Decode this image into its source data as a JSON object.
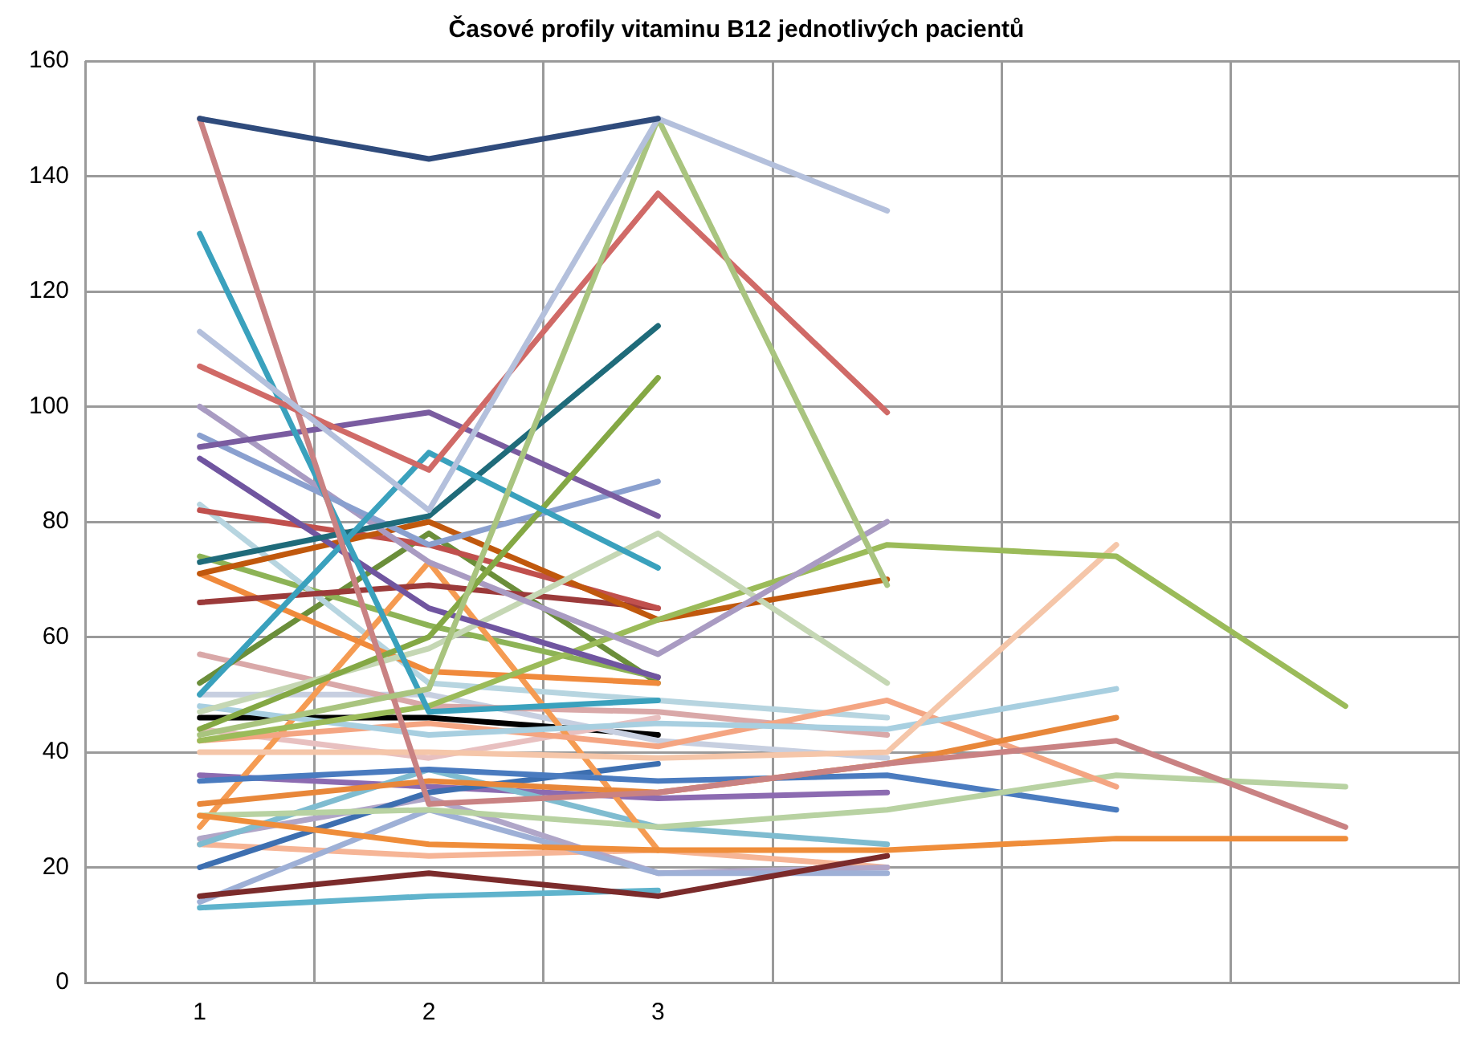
{
  "chart_data": {
    "type": "line",
    "title": "Časové profily vitaminu B12 jednotlivých pacientů",
    "categories": [
      "1",
      "2",
      "3",
      null,
      null,
      null
    ],
    "ylim": [
      0,
      160
    ],
    "yticks": [
      0,
      20,
      40,
      60,
      80,
      100,
      120,
      140,
      160
    ],
    "grid": true,
    "legend": false,
    "marker": "none",
    "line_style": "solid",
    "series": [
      {
        "color": "#2f4b7c",
        "values": [
          150,
          143,
          150,
          null,
          null,
          null
        ]
      },
      {
        "color": "#b4c0dc",
        "values": [
          113,
          82,
          150,
          134,
          null,
          null
        ]
      },
      {
        "color": "#a9c47f",
        "values": [
          43,
          51,
          150,
          69,
          null,
          null
        ]
      },
      {
        "color": "#d06a67",
        "values": [
          107,
          89,
          137,
          99,
          null,
          null
        ]
      },
      {
        "color": "#c98283",
        "values": [
          150,
          31,
          33,
          38,
          42,
          27
        ]
      },
      {
        "color": "#3aa1bd",
        "values": [
          50,
          92,
          72,
          null,
          null,
          null
        ]
      },
      {
        "color": "#3aa1bd",
        "values": [
          130,
          47,
          49,
          null,
          null,
          null
        ]
      },
      {
        "color": "#1f6b7a",
        "values": [
          73,
          81,
          114,
          null,
          null,
          null
        ]
      },
      {
        "color": "#84a844",
        "values": [
          44,
          60,
          105,
          null,
          null,
          null
        ]
      },
      {
        "color": "#7a5ca0",
        "values": [
          93,
          99,
          81,
          null,
          null,
          null
        ]
      },
      {
        "color": "#8aa0cf",
        "values": [
          95,
          76,
          87,
          null,
          null,
          null
        ]
      },
      {
        "color": "#a99bc2",
        "values": [
          100,
          73,
          57,
          80,
          null,
          null
        ]
      },
      {
        "color": "#7055a0",
        "values": [
          91,
          65,
          53,
          null,
          null,
          null
        ]
      },
      {
        "color": "#c5d7b4",
        "values": [
          47,
          58,
          78,
          52,
          null,
          null
        ]
      },
      {
        "color": "#9bbb59",
        "values": [
          42,
          48,
          63,
          76,
          74,
          48
        ]
      },
      {
        "color": "#c0580d",
        "values": [
          71,
          80,
          63,
          70,
          null,
          null
        ]
      },
      {
        "color": "#f5c6a9",
        "values": [
          40,
          40,
          39,
          40,
          76,
          null
        ]
      },
      {
        "color": "#a8cfe0",
        "values": [
          48,
          43,
          45,
          44,
          51,
          null
        ]
      },
      {
        "color": "#ef8d3a",
        "values": [
          29,
          24,
          23,
          23,
          25,
          25
        ]
      },
      {
        "color": "#e8873a",
        "values": [
          31,
          35,
          33,
          38,
          46,
          null
        ]
      },
      {
        "color": "#f4a582",
        "values": [
          42,
          45,
          41,
          49,
          34,
          null
        ]
      },
      {
        "color": "#b8d2a2",
        "values": [
          29,
          30,
          27,
          30,
          36,
          34
        ]
      },
      {
        "color": "#4a7bbf",
        "values": [
          35,
          37,
          35,
          36,
          30,
          null
        ]
      },
      {
        "color": "#c0504d",
        "values": [
          82,
          76,
          65,
          null,
          null,
          null
        ]
      },
      {
        "color": "#9b3a3a",
        "values": [
          66,
          69,
          65,
          null,
          null,
          null
        ]
      },
      {
        "color": "#7b2b2b",
        "values": [
          15,
          19,
          15,
          22,
          null,
          null
        ]
      },
      {
        "color": "#5fb3cc",
        "values": [
          13,
          15,
          16,
          null,
          null,
          null
        ]
      },
      {
        "color": "#9eb0d6",
        "values": [
          14,
          30,
          19,
          19,
          null,
          null
        ]
      },
      {
        "color": "#f08a3c",
        "values": [
          71,
          54,
          52,
          null,
          null,
          null
        ]
      },
      {
        "color": "#f59b52",
        "values": [
          27,
          73,
          23,
          null,
          null,
          null
        ]
      },
      {
        "color": "#b7d5e0",
        "values": [
          83,
          52,
          49,
          46,
          null,
          null
        ]
      },
      {
        "color": "#8db356",
        "values": [
          74,
          62,
          53,
          null,
          null,
          null
        ]
      },
      {
        "color": "#6b8e3a",
        "values": [
          52,
          78,
          52,
          null,
          null,
          null
        ]
      },
      {
        "color": "#d9a8a8",
        "values": [
          57,
          48,
          47,
          43,
          null,
          null
        ]
      },
      {
        "color": "#7fbcd0",
        "values": [
          24,
          37,
          27,
          24,
          null,
          null
        ]
      },
      {
        "color": "#3d6fb0",
        "values": [
          20,
          33,
          38,
          null,
          null,
          null
        ]
      },
      {
        "color": "#b0a6c8",
        "values": [
          25,
          32,
          19,
          20,
          null,
          null
        ]
      },
      {
        "color": "#f6b596",
        "values": [
          24,
          22,
          23,
          20,
          null,
          null
        ]
      },
      {
        "color": "#e8c0c0",
        "values": [
          44,
          39,
          46,
          null,
          null,
          null
        ]
      },
      {
        "color": "#c7cfe0",
        "values": [
          50,
          50,
          42,
          39,
          null,
          null
        ]
      },
      {
        "color": "#8c6bb1",
        "values": [
          36,
          34,
          32,
          33,
          null,
          null
        ]
      },
      {
        "color": "#000000",
        "values": [
          46,
          46,
          43,
          null,
          null,
          null
        ]
      }
    ]
  }
}
